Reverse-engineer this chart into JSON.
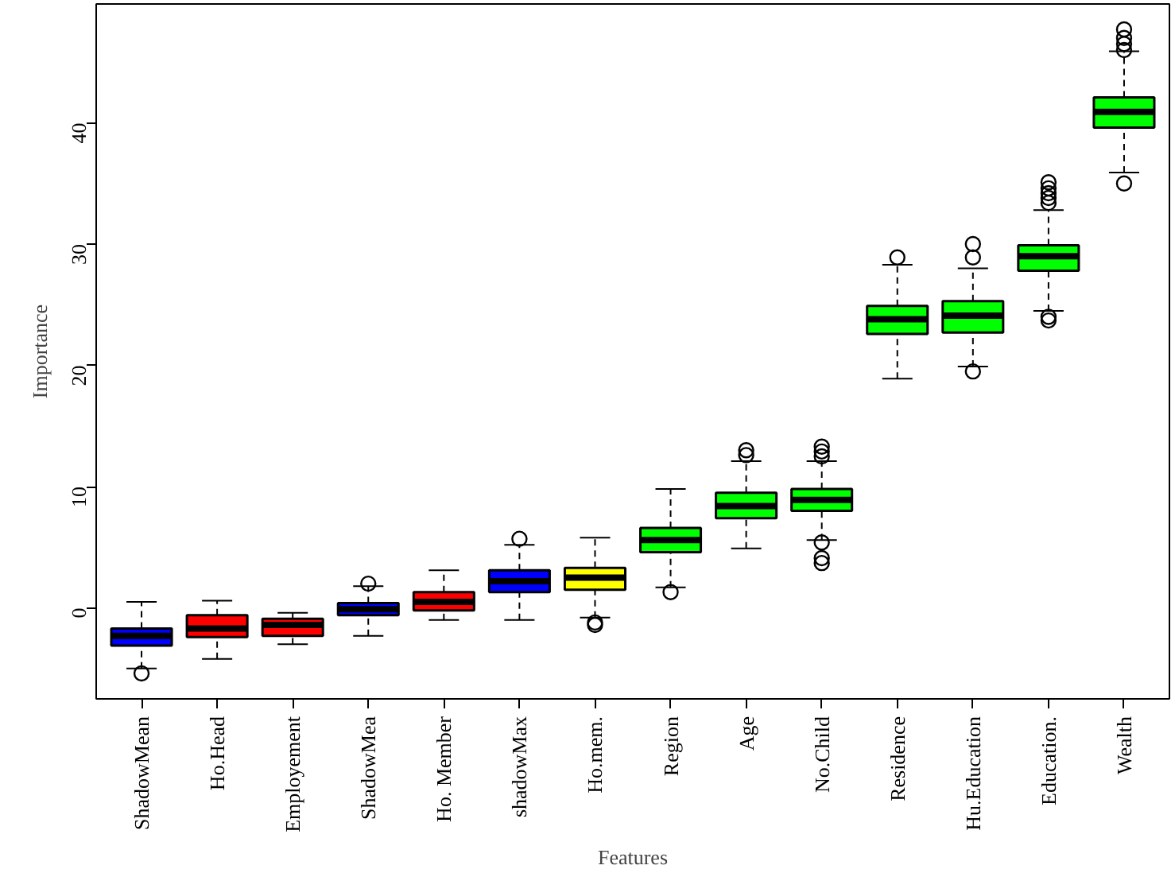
{
  "chart_data": {
    "type": "box",
    "xlabel": "Features",
    "ylabel": "Importance",
    "categories": [
      "ShadowMean",
      "Ho.Head",
      "Employement",
      "ShadowMea",
      "Ho. Member",
      "shadowMax",
      "Ho.mem.",
      "Region",
      "Age",
      "No.Child",
      "Residence",
      "Hu.Education",
      "Education.",
      "Wealth"
    ],
    "colors": [
      "#0000ff",
      "#ff0000",
      "#ff0000",
      "#0000ff",
      "#ff0000",
      "#0000ff",
      "#ffff00",
      "#00ff00",
      "#00ff00",
      "#00ff00",
      "#00ff00",
      "#00ff00",
      "#00ff00",
      "#00ff00"
    ],
    "boxes": [
      {
        "low": -5.0,
        "q1": -3.1,
        "median": -2.3,
        "q3": -1.7,
        "high": 0.5,
        "outliers": [
          -5.4
        ]
      },
      {
        "low": -4.2,
        "q1": -2.4,
        "median": -1.7,
        "q3": -0.6,
        "high": 0.6
      },
      {
        "low": -3.0,
        "q1": -2.3,
        "median": -1.4,
        "q3": -0.9,
        "high": -0.4
      },
      {
        "low": -2.3,
        "q1": -0.6,
        "median": -0.1,
        "q3": 0.4,
        "high": 1.8,
        "outliers": [
          2.0
        ]
      },
      {
        "low": -1.0,
        "q1": -0.2,
        "median": 0.5,
        "q3": 1.3,
        "high": 3.1
      },
      {
        "low": -1.0,
        "q1": 1.3,
        "median": 2.2,
        "q3": 3.1,
        "high": 5.2,
        "outliers": [
          5.7
        ]
      },
      {
        "low": -0.8,
        "q1": 1.5,
        "median": 2.5,
        "q3": 3.3,
        "high": 5.8,
        "outliers": [
          -1.2,
          -1.4
        ]
      },
      {
        "low": 1.7,
        "q1": 4.6,
        "median": 5.6,
        "q3": 6.6,
        "high": 9.8,
        "outliers": [
          1.3
        ]
      },
      {
        "low": 4.9,
        "q1": 7.4,
        "median": 8.4,
        "q3": 9.5,
        "high": 12.1,
        "outliers": [
          12.6,
          13.0
        ]
      },
      {
        "low": 5.6,
        "q1": 8.0,
        "median": 8.9,
        "q3": 9.8,
        "high": 12.1,
        "outliers": [
          12.5,
          12.9,
          13.3,
          5.4,
          4.1,
          3.7
        ]
      },
      {
        "low": 18.9,
        "q1": 22.6,
        "median": 23.8,
        "q3": 24.9,
        "high": 28.3,
        "outliers": [
          28.9
        ]
      },
      {
        "low": 19.9,
        "q1": 22.7,
        "median": 24.1,
        "q3": 25.3,
        "high": 28.0,
        "outliers": [
          28.9,
          30.0,
          19.5
        ]
      },
      {
        "low": 24.5,
        "q1": 27.8,
        "median": 29.0,
        "q3": 29.9,
        "high": 32.8,
        "outliers": [
          33.4,
          33.8,
          34.2,
          34.6,
          35.1,
          24.0,
          23.7
        ]
      },
      {
        "low": 35.9,
        "q1": 39.6,
        "median": 40.9,
        "q3": 42.1,
        "high": 45.9,
        "outliers": [
          46.0,
          46.5,
          47.0,
          47.7,
          35.0
        ]
      }
    ],
    "ylim": [
      -7.5,
      49.8
    ],
    "yticks": [
      0,
      10,
      20,
      30,
      40
    ]
  }
}
